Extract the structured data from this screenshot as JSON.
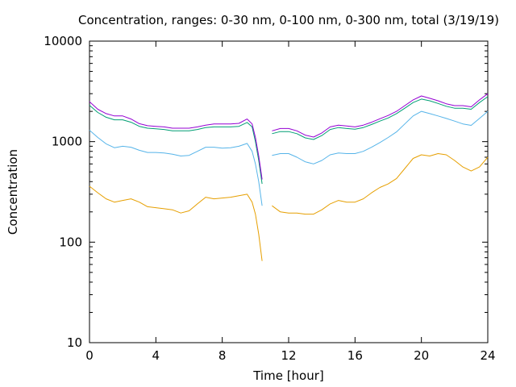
{
  "chart_data": {
    "type": "line",
    "title": "Concentration, ranges: 0-30 nm, 0-100 nm, 0-300 nm, total (3/19/19)",
    "xlabel": "Time [hour]",
    "ylabel": "Concentration",
    "xlim": [
      0,
      24
    ],
    "ylim": [
      10,
      10000
    ],
    "yscale": "log",
    "grid": false,
    "legend": "none",
    "x_ticks": [
      0,
      4,
      8,
      12,
      16,
      20,
      24
    ],
    "x_tick_labels": [
      "0",
      "4",
      "8",
      "12",
      "16",
      "20",
      "24"
    ],
    "y_ticks": [
      10,
      100,
      1000,
      10000
    ],
    "y_tick_labels": [
      "10",
      "100",
      "1000",
      "10000"
    ],
    "series": [
      {
        "color": "#e69f00",
        "segments": [
          {
            "x": [
              0,
              0.5,
              1,
              1.5,
              2,
              2.5,
              3,
              3.5,
              4,
              4.5,
              5,
              5.5,
              6,
              6.5,
              7,
              7.5,
              8,
              8.5,
              9,
              9.5,
              9.8,
              10,
              10.2,
              10.4
            ],
            "y": [
              360,
              310,
              270,
              250,
              260,
              270,
              250,
              225,
              220,
              215,
              210,
              195,
              205,
              240,
              280,
              270,
              275,
              280,
              290,
              300,
              250,
              190,
              120,
              65
            ]
          },
          {
            "x": [
              11,
              11.5,
              12,
              12.5,
              13,
              13.5,
              14,
              14.5,
              15,
              15.5,
              16,
              16.5,
              17,
              17.5,
              18,
              18.5,
              19,
              19.5,
              20,
              20.5,
              21,
              21.5,
              22,
              22.5,
              23,
              23.5,
              24
            ],
            "y": [
              230,
              200,
              195,
              195,
              190,
              190,
              210,
              240,
              260,
              250,
              250,
              270,
              310,
              350,
              380,
              430,
              540,
              680,
              740,
              720,
              760,
              740,
              650,
              560,
              510,
              560,
              700
            ]
          }
        ]
      },
      {
        "color": "#56b4e9",
        "segments": [
          {
            "x": [
              0,
              0.5,
              1,
              1.5,
              2,
              2.5,
              3,
              3.5,
              4,
              4.5,
              5,
              5.5,
              6,
              6.5,
              7,
              7.5,
              8,
              8.5,
              9,
              9.5,
              9.8,
              10,
              10.2,
              10.4
            ],
            "y": [
              1300,
              1100,
              950,
              870,
              900,
              880,
              820,
              780,
              780,
              770,
              750,
              720,
              730,
              800,
              880,
              880,
              860,
              870,
              900,
              960,
              800,
              600,
              400,
              230
            ]
          },
          {
            "x": [
              11,
              11.5,
              12,
              12.5,
              13,
              13.5,
              14,
              14.5,
              15,
              15.5,
              16,
              16.5,
              17,
              17.5,
              18,
              18.5,
              19,
              19.5,
              20,
              20.5,
              21,
              21.5,
              22,
              22.5,
              23,
              23.5,
              24
            ],
            "y": [
              730,
              760,
              760,
              700,
              630,
              600,
              650,
              740,
              770,
              760,
              760,
              800,
              880,
              980,
              1100,
              1250,
              1500,
              1800,
              2000,
              1900,
              1800,
              1700,
              1600,
              1500,
              1450,
              1700,
              2000
            ]
          }
        ]
      },
      {
        "color": "#009e73",
        "segments": [
          {
            "x": [
              0,
              0.5,
              1,
              1.5,
              2,
              2.5,
              3,
              3.5,
              4,
              4.5,
              5,
              5.5,
              6,
              6.5,
              7,
              7.5,
              8,
              8.5,
              9,
              9.5,
              9.8,
              10,
              10.2,
              10.4
            ],
            "y": [
              2300,
              1950,
              1750,
              1650,
              1650,
              1560,
              1420,
              1360,
              1340,
              1320,
              1280,
              1280,
              1280,
              1320,
              1380,
              1400,
              1400,
              1400,
              1420,
              1550,
              1400,
              1000,
              650,
              380
            ]
          },
          {
            "x": [
              11,
              11.5,
              12,
              12.5,
              13,
              13.5,
              14,
              14.5,
              15,
              15.5,
              16,
              16.5,
              17,
              17.5,
              18,
              18.5,
              19,
              19.5,
              20,
              20.5,
              21,
              21.5,
              22,
              22.5,
              23,
              23.5,
              24
            ],
            "y": [
              1200,
              1260,
              1260,
              1200,
              1090,
              1050,
              1150,
              1320,
              1380,
              1350,
              1330,
              1380,
              1480,
              1600,
              1720,
              1900,
              2150,
              2450,
              2650,
              2550,
              2400,
              2250,
              2150,
              2150,
              2100,
              2450,
              2800
            ]
          }
        ]
      },
      {
        "color": "#9400d3",
        "segments": [
          {
            "x": [
              0,
              0.5,
              1,
              1.5,
              2,
              2.5,
              3,
              3.5,
              4,
              4.5,
              5,
              5.5,
              6,
              6.5,
              7,
              7.5,
              8,
              8.5,
              9,
              9.5,
              9.8,
              10,
              10.2,
              10.4
            ],
            "y": [
              2500,
              2100,
              1900,
              1800,
              1800,
              1680,
              1510,
              1440,
              1420,
              1400,
              1360,
              1360,
              1360,
              1400,
              1460,
              1500,
              1500,
              1500,
              1520,
              1680,
              1500,
              1100,
              720,
              420
            ]
          },
          {
            "x": [
              11,
              11.5,
              12,
              12.5,
              13,
              13.5,
              14,
              14.5,
              15,
              15.5,
              16,
              16.5,
              17,
              17.5,
              18,
              18.5,
              19,
              19.5,
              20,
              20.5,
              21,
              21.5,
              22,
              22.5,
              23,
              23.5,
              24
            ],
            "y": [
              1280,
              1350,
              1350,
              1280,
              1160,
              1110,
              1220,
              1400,
              1460,
              1430,
              1400,
              1460,
              1560,
              1690,
              1820,
              2000,
              2280,
              2600,
              2850,
              2700,
              2550,
              2380,
              2280,
              2280,
              2220,
              2600,
              3000
            ]
          }
        ]
      }
    ]
  }
}
